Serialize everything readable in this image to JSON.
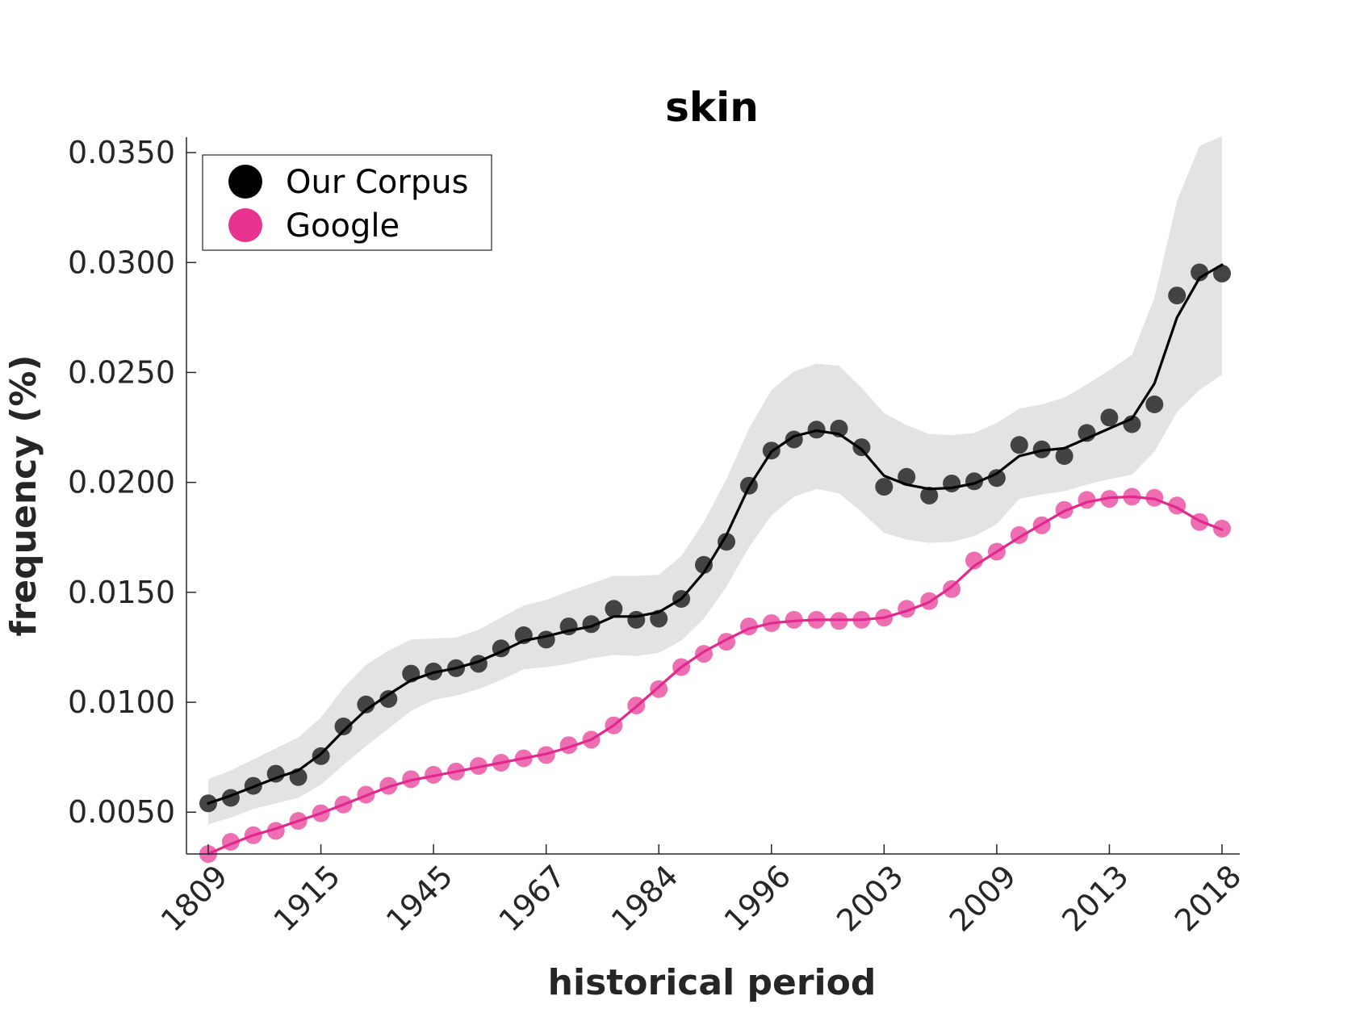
{
  "chart_data": {
    "type": "line",
    "title": "skin",
    "xlabel": "historical period",
    "ylabel": "frequency (%)",
    "x_tick_labels": [
      "1809",
      "1915",
      "1945",
      "1967",
      "1984",
      "1996",
      "2003",
      "2009",
      "2013",
      "2018"
    ],
    "y_ticks": [
      0.005,
      0.01,
      0.015,
      0.02,
      0.025,
      0.03,
      0.035
    ],
    "y_tick_labels": [
      "0.0050",
      "0.0100",
      "0.0150",
      "0.0200",
      "0.0250",
      "0.0300",
      "0.0350"
    ],
    "ylim": [
      0.0031,
      0.0357
    ],
    "grid": false,
    "legend_position": "top-left",
    "series": [
      {
        "name": "Our Corpus",
        "color": "#000000",
        "marker_color": "#3a3a3a",
        "points": [
          0.0054,
          0.00565,
          0.0062,
          0.00675,
          0.0066,
          0.00755,
          0.0089,
          0.0099,
          0.01015,
          0.0113,
          0.0114,
          0.01155,
          0.01175,
          0.01245,
          0.01305,
          0.01285,
          0.01345,
          0.01355,
          0.01425,
          0.01375,
          0.0138,
          0.0147,
          0.01625,
          0.0173,
          0.01985,
          0.02145,
          0.02195,
          0.0224,
          0.02245,
          0.0216,
          0.0198,
          0.02025,
          0.0194,
          0.01995,
          0.02005,
          0.0202,
          0.0217,
          0.0215,
          0.0212,
          0.02225,
          0.02295,
          0.02265,
          0.02355,
          0.0285,
          0.02955,
          0.0295
        ],
        "smooth": [
          0.0054,
          0.00575,
          0.00615,
          0.00655,
          0.0069,
          0.00765,
          0.0087,
          0.00965,
          0.01035,
          0.011,
          0.01135,
          0.01155,
          0.01185,
          0.0123,
          0.0128,
          0.013,
          0.01325,
          0.01345,
          0.0139,
          0.0139,
          0.0141,
          0.0147,
          0.0159,
          0.0176,
          0.0198,
          0.0214,
          0.0221,
          0.02235,
          0.0222,
          0.0215,
          0.0203,
          0.0199,
          0.0197,
          0.01975,
          0.01995,
          0.0204,
          0.0212,
          0.02145,
          0.02155,
          0.022,
          0.02245,
          0.0229,
          0.0245,
          0.0275,
          0.0293,
          0.0299
        ],
        "band_upper": [
          0.0065,
          0.0069,
          0.0074,
          0.0079,
          0.0084,
          0.0093,
          0.01065,
          0.0117,
          0.01235,
          0.01285,
          0.0129,
          0.01295,
          0.0133,
          0.01385,
          0.0144,
          0.01465,
          0.01505,
          0.0154,
          0.01575,
          0.01575,
          0.0158,
          0.01665,
          0.0182,
          0.02015,
          0.02245,
          0.0242,
          0.02505,
          0.0254,
          0.0253,
          0.0243,
          0.02315,
          0.0226,
          0.0222,
          0.02215,
          0.02225,
          0.0227,
          0.02335,
          0.02355,
          0.02385,
          0.02445,
          0.0251,
          0.0258,
          0.0284,
          0.0328,
          0.0353,
          0.03575
        ],
        "band_lower": [
          0.00445,
          0.00475,
          0.00515,
          0.0054,
          0.00565,
          0.00625,
          0.00715,
          0.008,
          0.0088,
          0.0096,
          0.0101,
          0.0103,
          0.0106,
          0.011,
          0.0115,
          0.0116,
          0.01175,
          0.012,
          0.01215,
          0.0121,
          0.01225,
          0.0128,
          0.0138,
          0.01525,
          0.01705,
          0.0185,
          0.01935,
          0.0197,
          0.0195,
          0.01865,
          0.0177,
          0.0174,
          0.01725,
          0.0173,
          0.01755,
          0.0181,
          0.01925,
          0.01945,
          0.0196,
          0.0199,
          0.02015,
          0.02035,
          0.0214,
          0.0232,
          0.0242,
          0.0249
        ]
      },
      {
        "name": "Google",
        "color": "#e0288f",
        "marker_color": "#ec5fa9",
        "points": [
          0.0031,
          0.00365,
          0.00395,
          0.00415,
          0.0046,
          0.00495,
          0.00535,
          0.0058,
          0.0062,
          0.0065,
          0.0067,
          0.00685,
          0.0071,
          0.00725,
          0.00745,
          0.0076,
          0.00805,
          0.0083,
          0.00895,
          0.00985,
          0.0106,
          0.0116,
          0.0122,
          0.01275,
          0.01345,
          0.0136,
          0.01375,
          0.01375,
          0.0137,
          0.01375,
          0.01385,
          0.01425,
          0.0146,
          0.01515,
          0.01645,
          0.01685,
          0.0176,
          0.01805,
          0.01875,
          0.0192,
          0.01925,
          0.01935,
          0.0193,
          0.01895,
          0.0182,
          0.0179
        ],
        "smooth": [
          0.0031,
          0.00355,
          0.00395,
          0.00425,
          0.0046,
          0.00495,
          0.00535,
          0.00575,
          0.00615,
          0.00645,
          0.00665,
          0.00685,
          0.00705,
          0.00725,
          0.00745,
          0.00765,
          0.00795,
          0.0083,
          0.00895,
          0.0098,
          0.0107,
          0.0116,
          0.0123,
          0.01285,
          0.01335,
          0.0136,
          0.0137,
          0.01375,
          0.01375,
          0.01375,
          0.01385,
          0.01415,
          0.01455,
          0.01525,
          0.0162,
          0.01685,
          0.0175,
          0.0181,
          0.0187,
          0.0191,
          0.0193,
          0.01935,
          0.01925,
          0.01885,
          0.01825,
          0.01785
        ]
      }
    ]
  }
}
